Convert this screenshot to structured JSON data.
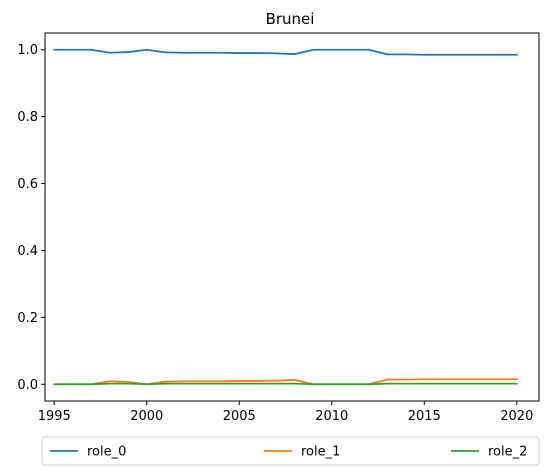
{
  "chart_data": {
    "type": "line",
    "title": "Brunei",
    "xlabel": "",
    "ylabel": "",
    "xlim": [
      1994.5,
      2021.2
    ],
    "ylim": [
      -0.05,
      1.05
    ],
    "x_ticks": [
      1995,
      2000,
      2005,
      2010,
      2015,
      2020
    ],
    "x_tick_labels": [
      "1995",
      "2000",
      "2005",
      "2010",
      "2015",
      "2020"
    ],
    "y_ticks": [
      0.0,
      0.2,
      0.4,
      0.6,
      0.8,
      1.0
    ],
    "y_tick_labels": [
      "0.0",
      "0.2",
      "0.4",
      "0.6",
      "0.8",
      "1.0"
    ],
    "grid": false,
    "legend_position": "below, three columns",
    "x": [
      1995,
      1996,
      1997,
      1998,
      1999,
      2000,
      2001,
      2002,
      2003,
      2004,
      2005,
      2006,
      2007,
      2008,
      2009,
      2010,
      2011,
      2012,
      2013,
      2014,
      2015,
      2016,
      2017,
      2018,
      2019,
      2020
    ],
    "series": [
      {
        "name": "role_0",
        "color": "#1f77b4",
        "values": [
          1.0,
          1.0,
          1.0,
          0.991,
          0.993,
          1.0,
          0.992,
          0.991,
          0.991,
          0.991,
          0.99,
          0.99,
          0.989,
          0.987,
          1.0,
          1.0,
          1.0,
          1.0,
          0.986,
          0.986,
          0.985,
          0.985,
          0.985,
          0.985,
          0.985,
          0.985
        ]
      },
      {
        "name": "role_1",
        "color": "#ff7f0e",
        "values": [
          0.0,
          0.0,
          0.0,
          0.009,
          0.007,
          0.0,
          0.008,
          0.009,
          0.009,
          0.009,
          0.01,
          0.01,
          0.011,
          0.013,
          0.0,
          0.0,
          0.0,
          0.0,
          0.014,
          0.014,
          0.015,
          0.015,
          0.015,
          0.015,
          0.015,
          0.015
        ]
      },
      {
        "name": "role_2",
        "color": "#2ca02c",
        "values": [
          0.0,
          0.0,
          0.0,
          0.002,
          0.002,
          0.0,
          0.002,
          0.002,
          0.002,
          0.002,
          0.002,
          0.002,
          0.002,
          0.002,
          0.0,
          0.0,
          0.0,
          0.0,
          0.002,
          0.002,
          0.002,
          0.002,
          0.002,
          0.002,
          0.002,
          0.002
        ]
      }
    ]
  }
}
